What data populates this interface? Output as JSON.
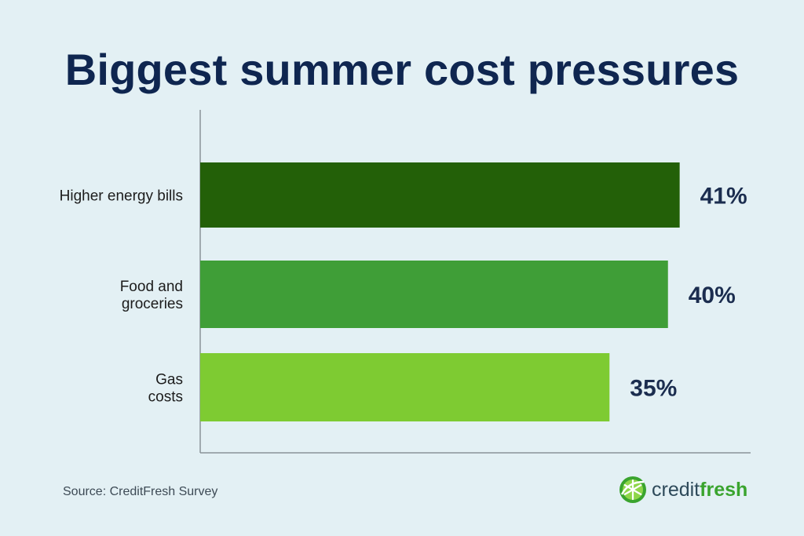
{
  "chart_data": {
    "type": "bar",
    "orientation": "horizontal",
    "title": "Biggest summer cost pressures",
    "categories": [
      [
        "Higher energy bills"
      ],
      [
        "Food and",
        "groceries"
      ],
      [
        "Gas",
        "costs"
      ]
    ],
    "values": [
      41,
      40,
      35
    ],
    "value_labels": [
      "41%",
      "40%",
      "35%"
    ],
    "bar_colors": [
      "#236008",
      "#3f9e37",
      "#7ecb32"
    ],
    "xlim": [
      0,
      47
    ],
    "grid": false,
    "legend": "none"
  },
  "footer": {
    "source": "Source: CreditFresh Survey"
  },
  "brand": {
    "name_regular": "credit",
    "name_bold": "fresh",
    "icon": "lime-slice-icon",
    "color": "#3aa42e"
  }
}
